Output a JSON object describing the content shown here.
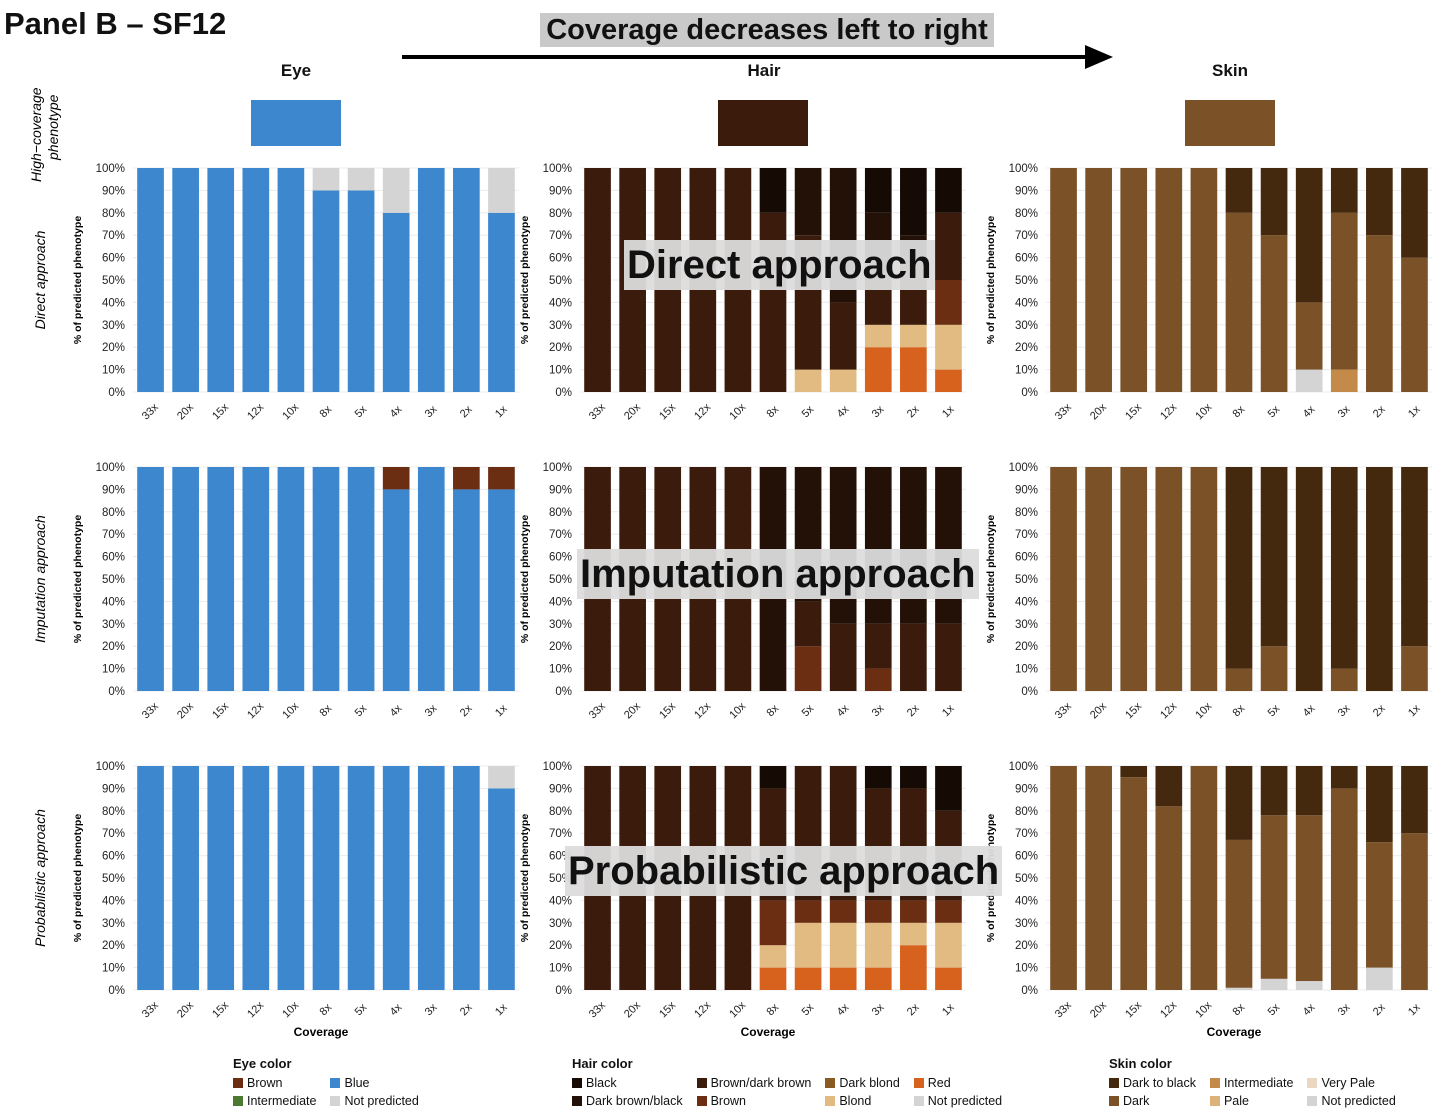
{
  "header": {
    "title": "Panel B – SF12",
    "banner": "Coverage decreases left to right"
  },
  "traits": [
    {
      "name": "Eye",
      "swatch_color": "#3d87cf"
    },
    {
      "name": "Hair",
      "swatch_color": "#3b1b0b"
    },
    {
      "name": "Skin",
      "swatch_color": "#7b5228"
    }
  ],
  "row_labels": {
    "high_coverage": "High−coverage phenotype",
    "direct": "Direct approach",
    "imputation": "Imputation approach",
    "probabilistic": "Probabilistic approach"
  },
  "overlays": {
    "direct": "Direct approach",
    "imputation": "Imputation approach",
    "probabilistic": "Probabilistic approach"
  },
  "axis": {
    "ylabel": "% of predicted phenotype",
    "xlabel": "Coverage",
    "yticks": [
      "0%",
      "10%",
      "20%",
      "30%",
      "40%",
      "50%",
      "60%",
      "70%",
      "80%",
      "90%",
      "100%"
    ]
  },
  "colors": {
    "Brown": "#6b2e12",
    "Blue": "#3d87cf",
    "Intermediate_eye": "#4c7a32",
    "Not predicted": "#d4d4d4",
    "Black": "#160a04",
    "Dark brown/black": "#231006",
    "Brown/dark brown": "#3b1b0b",
    "Brown_hair": "#6b2e12",
    "Dark blond": "#8a5a22",
    "Blond": "#e2bb82",
    "Red": "#d6621d",
    "Dark to black": "#45290f",
    "Dark": "#7b5228",
    "Intermediate_skin": "#c48a4a",
    "Pale": "#dcb27a",
    "Very Pale": "#ecd7c2"
  },
  "chart_data": [
    {
      "id": "eye-direct",
      "type": "bar",
      "stacked": true,
      "trait": "Eye",
      "approach": "Direct approach",
      "categories": [
        "33x",
        "20x",
        "15x",
        "12x",
        "10x",
        "8x",
        "5x",
        "4x",
        "3x",
        "2x",
        "1x"
      ],
      "ylim": [
        0,
        100
      ],
      "series": [
        {
          "name": "Blue",
          "color": "#3d87cf",
          "values": [
            100,
            100,
            100,
            100,
            100,
            90,
            90,
            80,
            100,
            100,
            80
          ]
        },
        {
          "name": "Not predicted",
          "color": "#d4d4d4",
          "values": [
            0,
            0,
            0,
            0,
            0,
            10,
            10,
            20,
            0,
            0,
            20
          ]
        }
      ]
    },
    {
      "id": "hair-direct",
      "type": "bar",
      "stacked": true,
      "trait": "Hair",
      "approach": "Direct approach",
      "categories": [
        "33x",
        "20x",
        "15x",
        "12x",
        "10x",
        "8x",
        "5x",
        "4x",
        "3x",
        "2x",
        "1x"
      ],
      "ylim": [
        0,
        100
      ],
      "series": [
        {
          "name": "Red",
          "color": "#d6621d",
          "values": [
            0,
            0,
            0,
            0,
            0,
            0,
            0,
            0,
            20,
            20,
            10
          ]
        },
        {
          "name": "Blond",
          "color": "#e2bb82",
          "values": [
            0,
            0,
            0,
            0,
            0,
            0,
            10,
            10,
            10,
            10,
            20
          ]
        },
        {
          "name": "Brown",
          "color": "#6b2e12",
          "values": [
            0,
            0,
            0,
            0,
            0,
            0,
            0,
            0,
            0,
            0,
            20
          ]
        },
        {
          "name": "Brown/dark brown",
          "color": "#3b1b0b",
          "values": [
            100,
            100,
            100,
            100,
            100,
            80,
            60,
            30,
            30,
            30,
            30
          ]
        },
        {
          "name": "Dark brown/black",
          "color": "#231006",
          "values": [
            0,
            0,
            0,
            0,
            0,
            0,
            30,
            60,
            20,
            10,
            0
          ]
        },
        {
          "name": "Black",
          "color": "#160a04",
          "values": [
            0,
            0,
            0,
            0,
            0,
            20,
            0,
            0,
            20,
            30,
            20
          ]
        }
      ]
    },
    {
      "id": "skin-direct",
      "type": "bar",
      "stacked": true,
      "trait": "Skin",
      "approach": "Direct approach",
      "categories": [
        "33x",
        "20x",
        "15x",
        "12x",
        "10x",
        "8x",
        "5x",
        "4x",
        "3x",
        "2x",
        "1x"
      ],
      "ylim": [
        0,
        100
      ],
      "series": [
        {
          "name": "Not predicted",
          "color": "#d4d4d4",
          "values": [
            0,
            0,
            0,
            0,
            0,
            0,
            0,
            10,
            0,
            0,
            0
          ]
        },
        {
          "name": "Intermediate",
          "color": "#c48a4a",
          "values": [
            0,
            0,
            0,
            0,
            0,
            0,
            0,
            0,
            10,
            0,
            0
          ]
        },
        {
          "name": "Dark",
          "color": "#7b5228",
          "values": [
            100,
            100,
            100,
            100,
            100,
            80,
            70,
            30,
            70,
            70,
            60
          ]
        },
        {
          "name": "Dark to black",
          "color": "#45290f",
          "values": [
            0,
            0,
            0,
            0,
            0,
            20,
            30,
            60,
            20,
            30,
            40
          ]
        }
      ]
    },
    {
      "id": "eye-imputation",
      "type": "bar",
      "stacked": true,
      "trait": "Eye",
      "approach": "Imputation approach",
      "categories": [
        "33x",
        "20x",
        "15x",
        "12x",
        "10x",
        "8x",
        "5x",
        "4x",
        "3x",
        "2x",
        "1x"
      ],
      "ylim": [
        0,
        100
      ],
      "series": [
        {
          "name": "Blue",
          "color": "#3d87cf",
          "values": [
            100,
            100,
            100,
            100,
            100,
            100,
            100,
            90,
            100,
            90,
            90
          ]
        },
        {
          "name": "Brown",
          "color": "#6b2e12",
          "values": [
            0,
            0,
            0,
            0,
            0,
            0,
            0,
            10,
            0,
            10,
            10
          ]
        }
      ]
    },
    {
      "id": "hair-imputation",
      "type": "bar",
      "stacked": true,
      "trait": "Hair",
      "approach": "Imputation approach",
      "categories": [
        "33x",
        "20x",
        "15x",
        "12x",
        "10x",
        "8x",
        "5x",
        "4x",
        "3x",
        "2x",
        "1x"
      ],
      "ylim": [
        0,
        100
      ],
      "series": [
        {
          "name": "Brown",
          "color": "#6b2e12",
          "values": [
            0,
            0,
            0,
            0,
            0,
            0,
            20,
            0,
            10,
            0,
            0
          ]
        },
        {
          "name": "Brown/dark brown",
          "color": "#3b1b0b",
          "values": [
            100,
            100,
            100,
            100,
            100,
            0,
            20,
            30,
            20,
            30,
            30
          ]
        },
        {
          "name": "Dark brown/black",
          "color": "#231006",
          "values": [
            0,
            0,
            0,
            0,
            0,
            100,
            60,
            70,
            70,
            70,
            70
          ]
        }
      ]
    },
    {
      "id": "skin-imputation",
      "type": "bar",
      "stacked": true,
      "trait": "Skin",
      "approach": "Imputation approach",
      "categories": [
        "33x",
        "20x",
        "15x",
        "12x",
        "10x",
        "8x",
        "5x",
        "4x",
        "3x",
        "2x",
        "1x"
      ],
      "ylim": [
        0,
        100
      ],
      "series": [
        {
          "name": "Dark",
          "color": "#7b5228",
          "values": [
            100,
            100,
            100,
            100,
            100,
            10,
            20,
            0,
            10,
            0,
            20
          ]
        },
        {
          "name": "Dark to black",
          "color": "#45290f",
          "values": [
            0,
            0,
            0,
            0,
            0,
            90,
            80,
            100,
            90,
            100,
            80
          ]
        }
      ]
    },
    {
      "id": "eye-probabilistic",
      "type": "bar",
      "stacked": true,
      "trait": "Eye",
      "approach": "Probabilistic approach",
      "categories": [
        "33x",
        "20x",
        "15x",
        "12x",
        "10x",
        "8x",
        "5x",
        "4x",
        "3x",
        "2x",
        "1x"
      ],
      "ylim": [
        0,
        100
      ],
      "series": [
        {
          "name": "Blue",
          "color": "#3d87cf",
          "values": [
            100,
            100,
            100,
            100,
            100,
            100,
            100,
            100,
            100,
            100,
            90
          ]
        },
        {
          "name": "Not predicted",
          "color": "#d4d4d4",
          "values": [
            0,
            0,
            0,
            0,
            0,
            0,
            0,
            0,
            0,
            0,
            10
          ]
        }
      ]
    },
    {
      "id": "hair-probabilistic",
      "type": "bar",
      "stacked": true,
      "trait": "Hair",
      "approach": "Probabilistic approach",
      "categories": [
        "33x",
        "20x",
        "15x",
        "12x",
        "10x",
        "8x",
        "5x",
        "4x",
        "3x",
        "2x",
        "1x"
      ],
      "ylim": [
        0,
        100
      ],
      "series": [
        {
          "name": "Red",
          "color": "#d6621d",
          "values": [
            0,
            0,
            0,
            0,
            0,
            10,
            10,
            10,
            10,
            20,
            10
          ]
        },
        {
          "name": "Blond",
          "color": "#e2bb82",
          "values": [
            0,
            0,
            0,
            0,
            0,
            10,
            20,
            20,
            20,
            10,
            20
          ]
        },
        {
          "name": "Brown",
          "color": "#6b2e12",
          "values": [
            0,
            0,
            0,
            0,
            0,
            20,
            10,
            10,
            10,
            10,
            10
          ]
        },
        {
          "name": "Brown/dark brown",
          "color": "#3b1b0b",
          "values": [
            100,
            100,
            100,
            100,
            100,
            50,
            60,
            60,
            50,
            50,
            40
          ]
        },
        {
          "name": "Dark brown/black",
          "color": "#231006",
          "values": [
            0,
            0,
            0,
            0,
            0,
            0,
            0,
            0,
            0,
            0,
            0
          ]
        },
        {
          "name": "Black",
          "color": "#160a04",
          "values": [
            0,
            0,
            0,
            0,
            0,
            10,
            0,
            0,
            10,
            10,
            20
          ]
        }
      ]
    },
    {
      "id": "skin-probabilistic",
      "type": "bar",
      "stacked": true,
      "trait": "Skin",
      "approach": "Probabilistic approach",
      "categories": [
        "33x",
        "20x",
        "15x",
        "12x",
        "10x",
        "8x",
        "5x",
        "4x",
        "3x",
        "2x",
        "1x"
      ],
      "ylim": [
        0,
        100
      ],
      "series": [
        {
          "name": "Not predicted",
          "color": "#d4d4d4",
          "values": [
            0,
            0,
            0,
            0,
            0,
            1,
            5,
            4,
            0,
            10,
            0
          ]
        },
        {
          "name": "Dark",
          "color": "#7b5228",
          "values": [
            100,
            100,
            95,
            82,
            100,
            66,
            73,
            74,
            90,
            56,
            70
          ]
        },
        {
          "name": "Dark to black",
          "color": "#45290f",
          "values": [
            0,
            0,
            5,
            18,
            0,
            33,
            22,
            22,
            10,
            34,
            30
          ]
        }
      ]
    }
  ],
  "legends": [
    {
      "title": "Eye color",
      "items": [
        {
          "label": "Brown",
          "color": "#6b2e12"
        },
        {
          "label": "Intermediate",
          "color": "#4c7a32"
        },
        {
          "label": "Blue",
          "color": "#3d87cf"
        },
        {
          "label": "Not predicted",
          "color": "#d4d4d4"
        }
      ]
    },
    {
      "title": "Hair color",
      "items": [
        {
          "label": "Black",
          "color": "#160a04"
        },
        {
          "label": "Dark brown/black",
          "color": "#231006"
        },
        {
          "label": "Brown/dark brown",
          "color": "#3b1b0b"
        },
        {
          "label": "Brown",
          "color": "#6b2e12"
        },
        {
          "label": "Dark blond",
          "color": "#8a5a22"
        },
        {
          "label": "Blond",
          "color": "#e2bb82"
        },
        {
          "label": "Red",
          "color": "#d6621d"
        },
        {
          "label": "Not predicted",
          "color": "#d4d4d4"
        }
      ]
    },
    {
      "title": "Skin color",
      "items": [
        {
          "label": "Dark to black",
          "color": "#45290f"
        },
        {
          "label": "Dark",
          "color": "#7b5228"
        },
        {
          "label": "Intermediate",
          "color": "#c48a4a"
        },
        {
          "label": "Pale",
          "color": "#dcb27a"
        },
        {
          "label": "Very Pale",
          "color": "#ecd7c2"
        },
        {
          "label": "Not predicted",
          "color": "#d4d4d4"
        }
      ]
    }
  ]
}
